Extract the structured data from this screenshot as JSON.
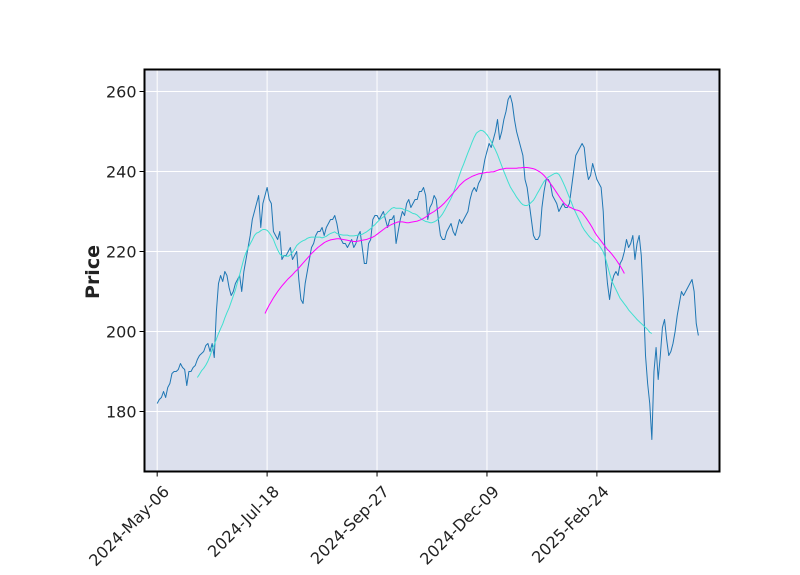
{
  "chart_data": {
    "type": "line",
    "title": "",
    "xlabel": "",
    "ylabel": "Price",
    "x_tick_labels": [
      "2024-May-06",
      "2024-Jul-18",
      "2024-Sep-27",
      "2024-Dec-09",
      "2025-Feb-24"
    ],
    "y_ticks": [
      180,
      200,
      220,
      240,
      260
    ],
    "ylim": [
      165,
      265.5
    ],
    "x_range_sessions": [
      -6,
      266
    ],
    "grid": true,
    "background": "#dce0ed",
    "series": [
      {
        "name": "",
        "role": "close",
        "color": "#1f77b4",
        "start_session": 0,
        "values": [
          182,
          183,
          183.5,
          185,
          183.5,
          186,
          187,
          189.5,
          190,
          190,
          190.5,
          192,
          191,
          190.5,
          186.5,
          190,
          190,
          191,
          191.5,
          193,
          194,
          194.5,
          195,
          196.5,
          197,
          195,
          197,
          193.5,
          205,
          212,
          214,
          212.5,
          215,
          214,
          211,
          209,
          210,
          212,
          213,
          214,
          210,
          215,
          218,
          221,
          224,
          228,
          230,
          232,
          234,
          226,
          232,
          234,
          236,
          233,
          232,
          225,
          224,
          223,
          225,
          218,
          219,
          219,
          220,
          221,
          218,
          219,
          220,
          213,
          208,
          207,
          212,
          215,
          218,
          221,
          222,
          224,
          225,
          225,
          226,
          224,
          226,
          227,
          228,
          228,
          229,
          227,
          224,
          223,
          222,
          222,
          221,
          222,
          223,
          221,
          222,
          224,
          225,
          221,
          217,
          217,
          222,
          223,
          228,
          229,
          229,
          228,
          229,
          230,
          228,
          226,
          228,
          228,
          229,
          222,
          225,
          228,
          230,
          229,
          232,
          233,
          231,
          232,
          233,
          233,
          235,
          235,
          236,
          234,
          228,
          231,
          232,
          234,
          233,
          228,
          224,
          223,
          223,
          225,
          226,
          227,
          225,
          224,
          226,
          228,
          227,
          228,
          229,
          230,
          233,
          235,
          236,
          235,
          237,
          238,
          240,
          243,
          245,
          247,
          246,
          248,
          250,
          253,
          248,
          250,
          253,
          255,
          258,
          259,
          257,
          253,
          250,
          248,
          246,
          244,
          238,
          236,
          232,
          228,
          224,
          223,
          223,
          224,
          231,
          235,
          238,
          238,
          237,
          234,
          233,
          232,
          230,
          231,
          232,
          231,
          231,
          232,
          236,
          240,
          244,
          245,
          246,
          247,
          246,
          241,
          238,
          239,
          242,
          240,
          238,
          237,
          236,
          230,
          218,
          212,
          208,
          212,
          214,
          215,
          214,
          217,
          218,
          220,
          223,
          221,
          222,
          224,
          218,
          222,
          224,
          219,
          208,
          194,
          187,
          182,
          173,
          190,
          196,
          188,
          194,
          201,
          203,
          198,
          194,
          195,
          197,
          200,
          204,
          207,
          210,
          209,
          210,
          211,
          212,
          213,
          210,
          202,
          199
        ]
      },
      {
        "name": "",
        "role": "moving-average-short",
        "color": "#40e0d0",
        "start_session": 19,
        "values": [
          188.5,
          189.3,
          190.2,
          190.8,
          191.6,
          192.6,
          193.9,
          195.5,
          196.7,
          198.1,
          199.5,
          200.7,
          201.9,
          203.4,
          204.7,
          205.9,
          207.4,
          208.9,
          210.4,
          212.3,
          214.2,
          216.2,
          218.2,
          219.7,
          220.9,
          221.9,
          222.9,
          224.0,
          224.6,
          224.8,
          225.2,
          225.5,
          225.5,
          225.3,
          224.7,
          223.9,
          223.0,
          221.6,
          220.4,
          219.4,
          218.9,
          218.9,
          218.8,
          218.8,
          219.2,
          219.8,
          220.6,
          221.5,
          222.0,
          222.4,
          222.7,
          222.9,
          223.3,
          223.5,
          223.6,
          223.6,
          223.6,
          223.6,
          223.6,
          223.4,
          223.6,
          223.8,
          224.2,
          224.5,
          224.7,
          224.9,
          224.5,
          224.3,
          224.2,
          224.1,
          224.1,
          224.1,
          223.9,
          223.9,
          223.9,
          224.0,
          224.1,
          224.2,
          224.3,
          224.6,
          224.9,
          225.3,
          225.7,
          226.3,
          226.7,
          227.3,
          227.8,
          228.3,
          228.6,
          229.2,
          229.8,
          230.3,
          230.8,
          231.0,
          230.8,
          230.8,
          230.8,
          230.7,
          230.4,
          230.3,
          230.1,
          229.8,
          229.5,
          229.4,
          229.1,
          228.6,
          228.1,
          227.8,
          227.5,
          227.4,
          227.2,
          227.2,
          227.4,
          227.7,
          228.1,
          228.7,
          229.4,
          230.3,
          231.3,
          232.3,
          233.3,
          234.5,
          236.0,
          237.6,
          239.1,
          240.6,
          241.9,
          243.3,
          244.7,
          246.0,
          247.4,
          248.6,
          249.6,
          250.0,
          250.3,
          250.2,
          249.8,
          249.2,
          248.4,
          247.5,
          246.4,
          245.4,
          244.2,
          242.8,
          241.4,
          240.0,
          238.7,
          237.4,
          236.2,
          235.3,
          234.5,
          233.6,
          232.9,
          232.2,
          231.7,
          231.5,
          231.5,
          231.8,
          232.3,
          232.8,
          233.7,
          234.7,
          235.6,
          236.6,
          237.5,
          238.1,
          238.6,
          238.9,
          239.2,
          239.5,
          239.6,
          239.3,
          238.4,
          237.3,
          236.1,
          234.8,
          233.5,
          232.2,
          230.8,
          229.7,
          228.6,
          227.5,
          226.3,
          225.4,
          224.7,
          224.0,
          223.4,
          222.9,
          222.4,
          222.2,
          221.6,
          220.8,
          219.9,
          218.4,
          216.5,
          214.5,
          212.7,
          211.6,
          210.5,
          209.4,
          208.3,
          207.6,
          206.9,
          206.2,
          205.4,
          204.8,
          204.2,
          203.6,
          203.0,
          202.5,
          202.0,
          201.5,
          201.0,
          200.5,
          199.8,
          199.5
        ]
      },
      {
        "name": "",
        "role": "moving-average-long",
        "color": "#ff00ff",
        "start_session": 51,
        "values": [
          204.5,
          205.6,
          206.6,
          207.5,
          208.4,
          209.2,
          210.0,
          210.7,
          211.4,
          212.0,
          212.6,
          213.2,
          213.7,
          214.2,
          214.8,
          215.3,
          215.9,
          216.5,
          217.1,
          217.7,
          218.3,
          218.9,
          219.5,
          220.0,
          220.5,
          221.0,
          221.4,
          221.8,
          222.2,
          222.5,
          222.7,
          222.9,
          223.0,
          223.1,
          223.2,
          223.2,
          223.1,
          223.0,
          222.9,
          222.8,
          222.7,
          222.6,
          222.5,
          222.5,
          222.6,
          222.7,
          222.8,
          222.9,
          223.0,
          223.2,
          223.4,
          223.6,
          223.9,
          224.3,
          224.7,
          225.1,
          225.5,
          225.9,
          226.2,
          226.5,
          226.8,
          227.0,
          227.2,
          227.4,
          227.4,
          227.4,
          227.3,
          227.2,
          227.2,
          227.3,
          227.4,
          227.5,
          227.6,
          227.8,
          228.0,
          228.3,
          228.6,
          229.0,
          229.4,
          229.7,
          230.0,
          230.4,
          230.8,
          231.2,
          231.7,
          232.2,
          232.8,
          233.4,
          234.0,
          234.6,
          235.2,
          235.8,
          236.5,
          237.0,
          237.5,
          237.9,
          238.2,
          238.5,
          238.8,
          239.0,
          239.2,
          239.4,
          239.5,
          239.6,
          239.7,
          239.8,
          239.8,
          239.9,
          239.9,
          240.1,
          240.3,
          240.5,
          240.6,
          240.7,
          240.8,
          240.8,
          240.8,
          240.8,
          240.8,
          240.8,
          240.9,
          240.9,
          241.0,
          241.0,
          241.0,
          240.9,
          240.8,
          240.7,
          240.5,
          240.2,
          239.9,
          239.5,
          239.0,
          238.4,
          237.7,
          237.0,
          236.3,
          235.5,
          234.7,
          233.9,
          233.1,
          232.4,
          231.8,
          231.4,
          231.1,
          230.9,
          230.6,
          230.4,
          230.3,
          230.1,
          229.7,
          229.0,
          228.3,
          227.5,
          226.7,
          225.8,
          224.8,
          224.0,
          223.3,
          222.6,
          221.9,
          221.2,
          220.5,
          220.0,
          219.4,
          218.7,
          218.0,
          217.2,
          216.4,
          215.5,
          214.5
        ]
      }
    ]
  }
}
